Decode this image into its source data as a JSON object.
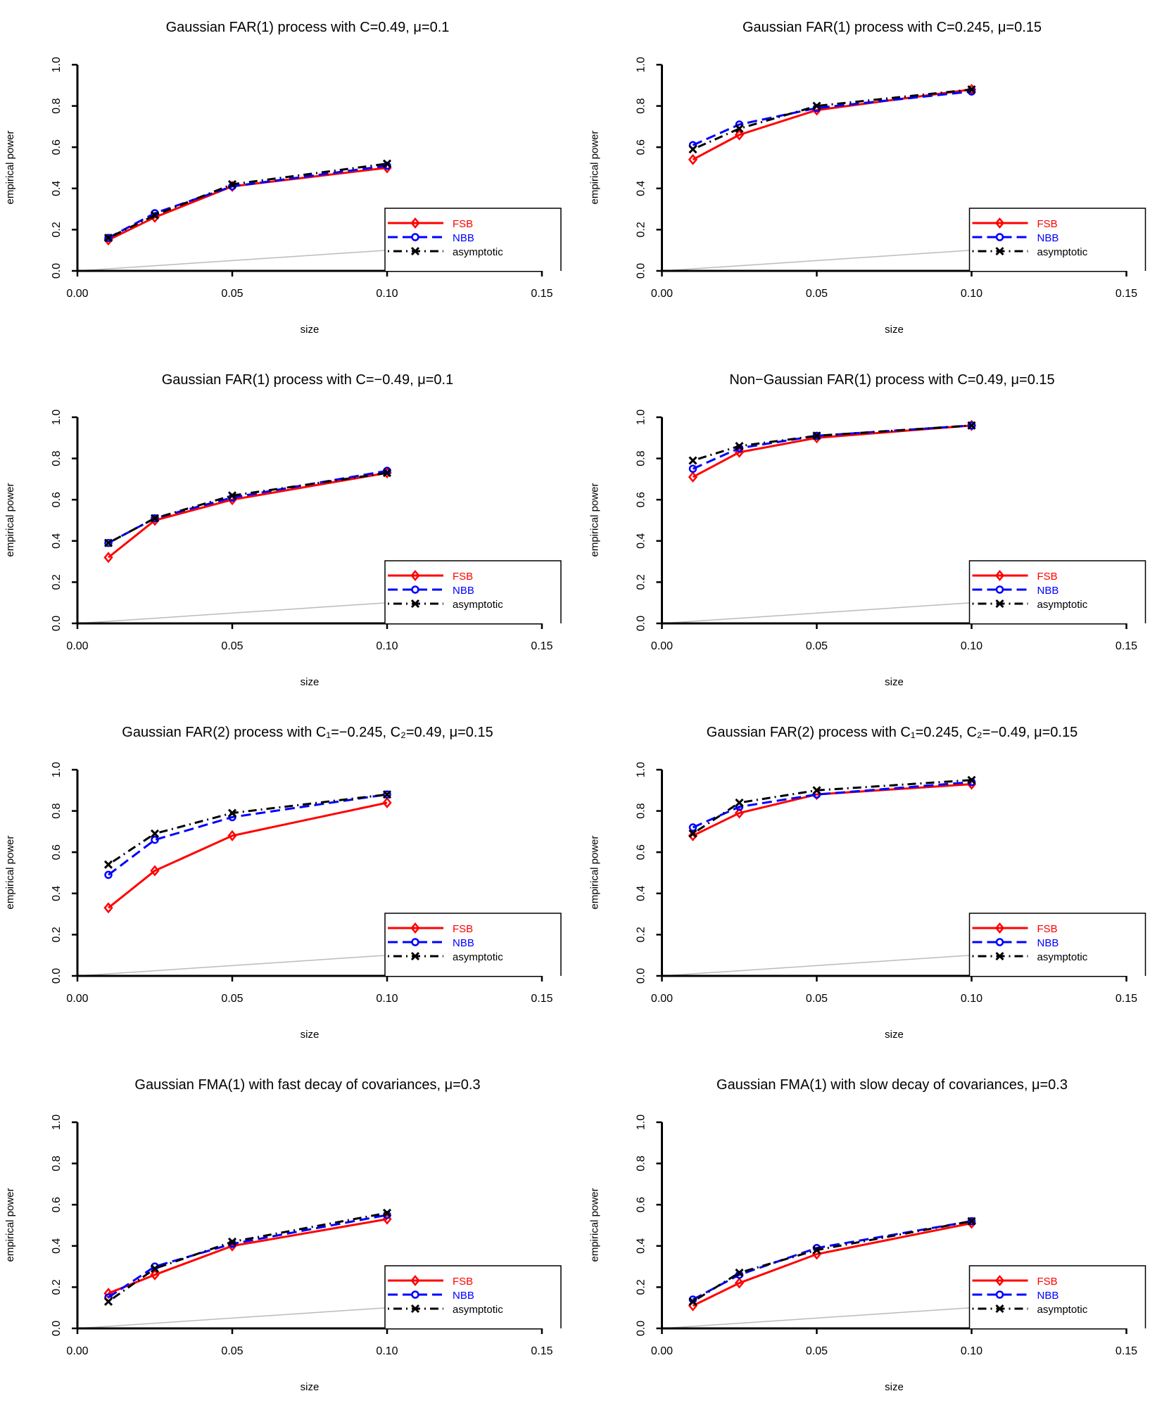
{
  "legend": {
    "placement": "bottom-right",
    "entries": [
      {
        "name": "FSB",
        "color": "#ff0000",
        "marker": "diamond-open",
        "line": "solid"
      },
      {
        "name": "NBB",
        "color": "#0000ff",
        "marker": "circle-open",
        "line": "dashed"
      },
      {
        "name": "asymptotic",
        "color": "#000000",
        "marker": "cross",
        "line": "dot-dash"
      }
    ]
  },
  "chart_data": [
    {
      "type": "line",
      "title": "Gaussian FAR(1) process with C=0.49, μ=0.1",
      "xlabel": "size",
      "ylabel": "empirical power",
      "xlim": [
        0,
        0.15
      ],
      "ylim": [
        0,
        1
      ],
      "x": [
        0.01,
        0.025,
        0.05,
        0.1
      ],
      "xticks": [
        "0.00",
        "0.05",
        "0.10",
        "0.15"
      ],
      "yticks": [
        "0.0",
        "0.2",
        "0.4",
        "0.6",
        "0.8",
        "1.0"
      ],
      "reference_line": "y=x (gray)",
      "series": [
        {
          "name": "FSB",
          "values": [
            0.15,
            0.26,
            0.41,
            0.5
          ]
        },
        {
          "name": "NBB",
          "values": [
            0.16,
            0.28,
            0.41,
            0.51
          ]
        },
        {
          "name": "asymptotic",
          "values": [
            0.16,
            0.27,
            0.42,
            0.52
          ]
        }
      ]
    },
    {
      "type": "line",
      "title": "Gaussian FAR(1) process with C=0.245, μ=0.15",
      "xlabel": "size",
      "ylabel": "empirical power",
      "xlim": [
        0,
        0.15
      ],
      "ylim": [
        0,
        1
      ],
      "x": [
        0.01,
        0.025,
        0.05,
        0.1
      ],
      "xticks": [
        "0.00",
        "0.05",
        "0.10",
        "0.15"
      ],
      "yticks": [
        "0.0",
        "0.2",
        "0.4",
        "0.6",
        "0.8",
        "1.0"
      ],
      "reference_line": "y=x (gray)",
      "series": [
        {
          "name": "FSB",
          "values": [
            0.54,
            0.66,
            0.78,
            0.88
          ]
        },
        {
          "name": "NBB",
          "values": [
            0.61,
            0.71,
            0.79,
            0.87
          ]
        },
        {
          "name": "asymptotic",
          "values": [
            0.59,
            0.69,
            0.8,
            0.88
          ]
        }
      ]
    },
    {
      "type": "line",
      "title": "Gaussian FAR(1) process with C=−0.49, μ=0.1",
      "xlabel": "size",
      "ylabel": "empirical power",
      "xlim": [
        0,
        0.15
      ],
      "ylim": [
        0,
        1
      ],
      "x": [
        0.01,
        0.025,
        0.05,
        0.1
      ],
      "xticks": [
        "0.00",
        "0.05",
        "0.10",
        "0.15"
      ],
      "yticks": [
        "0.0",
        "0.2",
        "0.4",
        "0.6",
        "0.8",
        "1.0"
      ],
      "reference_line": "y=x (gray)",
      "series": [
        {
          "name": "FSB",
          "values": [
            0.32,
            0.5,
            0.6,
            0.73
          ]
        },
        {
          "name": "NBB",
          "values": [
            0.39,
            0.51,
            0.61,
            0.74
          ]
        },
        {
          "name": "asymptotic",
          "values": [
            0.39,
            0.51,
            0.62,
            0.73
          ]
        }
      ]
    },
    {
      "type": "line",
      "title": "Non−Gaussian FAR(1) process with C=0.49, μ=0.15",
      "xlabel": "size",
      "ylabel": "empirical power",
      "xlim": [
        0,
        0.15
      ],
      "ylim": [
        0,
        1
      ],
      "x": [
        0.01,
        0.025,
        0.05,
        0.1
      ],
      "xticks": [
        "0.00",
        "0.05",
        "0.10",
        "0.15"
      ],
      "yticks": [
        "0.0",
        "0.2",
        "0.4",
        "0.6",
        "0.8",
        "1.0"
      ],
      "reference_line": "y=x (gray)",
      "series": [
        {
          "name": "FSB",
          "values": [
            0.71,
            0.83,
            0.9,
            0.96
          ]
        },
        {
          "name": "NBB",
          "values": [
            0.75,
            0.85,
            0.91,
            0.96
          ]
        },
        {
          "name": "asymptotic",
          "values": [
            0.79,
            0.86,
            0.91,
            0.96
          ]
        }
      ]
    },
    {
      "type": "line",
      "title": "Gaussian FAR(2) process with C₁=−0.245, C₂=0.49,  μ=0.15",
      "xlabel": "size",
      "ylabel": "empirical power",
      "xlim": [
        0,
        0.15
      ],
      "ylim": [
        0,
        1
      ],
      "x": [
        0.01,
        0.025,
        0.05,
        0.1
      ],
      "xticks": [
        "0.00",
        "0.05",
        "0.10",
        "0.15"
      ],
      "yticks": [
        "0.0",
        "0.2",
        "0.4",
        "0.6",
        "0.8",
        "1.0"
      ],
      "reference_line": "y=x (gray)",
      "series": [
        {
          "name": "FSB",
          "values": [
            0.33,
            0.51,
            0.68,
            0.84
          ]
        },
        {
          "name": "NBB",
          "values": [
            0.49,
            0.66,
            0.77,
            0.88
          ]
        },
        {
          "name": "asymptotic",
          "values": [
            0.54,
            0.69,
            0.79,
            0.88
          ]
        }
      ]
    },
    {
      "type": "line",
      "title": "Gaussian FAR(2) process with C₁=0.245, C₂=−0.49,  μ=0.15",
      "xlabel": "size",
      "ylabel": "empirical power",
      "xlim": [
        0,
        0.15
      ],
      "ylim": [
        0,
        1
      ],
      "x": [
        0.01,
        0.025,
        0.05,
        0.1
      ],
      "xticks": [
        "0.00",
        "0.05",
        "0.10",
        "0.15"
      ],
      "yticks": [
        "0.0",
        "0.2",
        "0.4",
        "0.6",
        "0.8",
        "1.0"
      ],
      "reference_line": "y=x (gray)",
      "series": [
        {
          "name": "FSB",
          "values": [
            0.68,
            0.79,
            0.88,
            0.93
          ]
        },
        {
          "name": "NBB",
          "values": [
            0.72,
            0.82,
            0.88,
            0.94
          ]
        },
        {
          "name": "asymptotic",
          "values": [
            0.69,
            0.84,
            0.9,
            0.95
          ]
        }
      ]
    },
    {
      "type": "line",
      "title": "Gaussian FMA(1) with fast decay of covariances, μ=0.3",
      "xlabel": "size",
      "ylabel": "empirical power",
      "xlim": [
        0,
        0.15
      ],
      "ylim": [
        0,
        1
      ],
      "x": [
        0.01,
        0.025,
        0.05,
        0.1
      ],
      "xticks": [
        "0.00",
        "0.05",
        "0.10",
        "0.15"
      ],
      "yticks": [
        "0.0",
        "0.2",
        "0.4",
        "0.6",
        "0.8",
        "1.0"
      ],
      "reference_line": "y=x (gray)",
      "series": [
        {
          "name": "FSB",
          "values": [
            0.17,
            0.26,
            0.4,
            0.53
          ]
        },
        {
          "name": "NBB",
          "values": [
            0.15,
            0.3,
            0.41,
            0.55
          ]
        },
        {
          "name": "asymptotic",
          "values": [
            0.13,
            0.29,
            0.42,
            0.56
          ]
        }
      ]
    },
    {
      "type": "line",
      "title": "Gaussian FMA(1) with slow decay of covariances, μ=0.3",
      "xlabel": "size",
      "ylabel": "empirical power",
      "xlim": [
        0,
        0.15
      ],
      "ylim": [
        0,
        1
      ],
      "x": [
        0.01,
        0.025,
        0.05,
        0.1
      ],
      "xticks": [
        "0.00",
        "0.05",
        "0.10",
        "0.15"
      ],
      "yticks": [
        "0.0",
        "0.2",
        "0.4",
        "0.6",
        "0.8",
        "1.0"
      ],
      "reference_line": "y=x (gray)",
      "series": [
        {
          "name": "FSB",
          "values": [
            0.11,
            0.22,
            0.36,
            0.51
          ]
        },
        {
          "name": "NBB",
          "values": [
            0.14,
            0.26,
            0.39,
            0.52
          ]
        },
        {
          "name": "asymptotic",
          "values": [
            0.13,
            0.27,
            0.38,
            0.52
          ]
        }
      ]
    }
  ]
}
